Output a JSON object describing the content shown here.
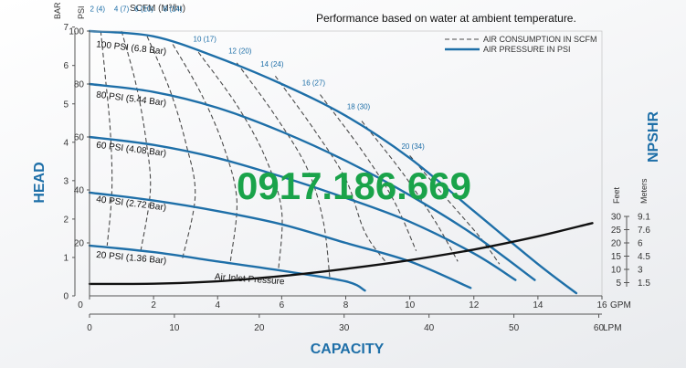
{
  "chart_data": {
    "type": "line",
    "note": "Performance based on water at ambient temperature.",
    "xlabel": "CAPACITY",
    "ylabel": "HEAD",
    "y2label": "NPSHR",
    "x_gpm": {
      "unit": "GPM",
      "range": [
        0,
        16
      ],
      "ticks": [
        "0",
        "2",
        "4",
        "6",
        "8",
        "10",
        "12",
        "14",
        "16"
      ]
    },
    "x_lpm": {
      "unit": "LPM",
      "range": [
        0,
        60
      ],
      "ticks": [
        "0",
        "10",
        "20",
        "30",
        "40",
        "50",
        "60"
      ]
    },
    "y_psi": {
      "unit": "PSI",
      "range": [
        0,
        100
      ],
      "ticks": [
        "20",
        "40",
        "60",
        "80",
        "100"
      ]
    },
    "y_bar": {
      "unit": "BAR",
      "ticks": [
        "0",
        "1",
        "2",
        "3",
        "4",
        "5",
        "6",
        "7"
      ]
    },
    "npshr_feet": {
      "unit": "Feet",
      "ticks": [
        "5",
        "10",
        "15",
        "20",
        "25",
        "30"
      ]
    },
    "npshr_meters": {
      "unit": "Meters",
      "ticks": [
        "1.5",
        "3",
        "4.5",
        "6",
        "7.6",
        "9.1"
      ]
    },
    "scfm_header": "SCFM (M³/hr)",
    "legend": {
      "position": "top-right",
      "entries": [
        {
          "label": "AIR CONSUMPTION IN SCFM",
          "style": "dashed"
        },
        {
          "label": "AIR PRESSURE IN PSI",
          "style": "solid"
        }
      ]
    },
    "air_pressure_series": [
      {
        "name": "100 PSI (6.8 Bar)",
        "points": [
          [
            0,
            100
          ],
          [
            2,
            98
          ],
          [
            4,
            90
          ],
          [
            6,
            80
          ],
          [
            8,
            68
          ],
          [
            10,
            52
          ],
          [
            12,
            32
          ],
          [
            14,
            12
          ],
          [
            15.2,
            1
          ]
        ]
      },
      {
        "name": "80 PSI (5.44 Bar)",
        "points": [
          [
            0,
            80
          ],
          [
            2,
            77
          ],
          [
            4,
            71
          ],
          [
            6,
            62
          ],
          [
            8,
            51
          ],
          [
            10,
            38
          ],
          [
            12,
            23
          ],
          [
            13.9,
            6
          ]
        ]
      },
      {
        "name": "60 PSI (4.08 Bar)",
        "points": [
          [
            0,
            60
          ],
          [
            2,
            57
          ],
          [
            4,
            52
          ],
          [
            6,
            45
          ],
          [
            8,
            37
          ],
          [
            10,
            28
          ],
          [
            12,
            16
          ],
          [
            13.3,
            6
          ]
        ]
      },
      {
        "name": "40 PSI (2.72 Bar)",
        "points": [
          [
            0,
            39
          ],
          [
            2,
            36
          ],
          [
            4,
            32
          ],
          [
            6,
            27
          ],
          [
            8,
            20
          ],
          [
            10,
            13
          ],
          [
            11.9,
            3
          ]
        ]
      },
      {
        "name": "20 PSI (1.36 Bar)",
        "points": [
          [
            0,
            19
          ],
          [
            2,
            16.5
          ],
          [
            4,
            13
          ],
          [
            6,
            9.5
          ],
          [
            8,
            5.5
          ],
          [
            8.6,
            2
          ]
        ]
      }
    ],
    "scfm_labels": [
      "2 (4)",
      "4 (7)",
      "6 (10)",
      "8 (14)",
      "10 (17)",
      "12 (20)",
      "14 (24)",
      "16 (27)",
      "18 (30)",
      "20 (34)"
    ],
    "air_consumption_series": [
      {
        "name": "2 (4)",
        "points": [
          [
            0.35,
            100
          ],
          [
            0.5,
            82
          ],
          [
            0.65,
            62
          ],
          [
            0.7,
            40
          ],
          [
            0.55,
            19
          ]
        ]
      },
      {
        "name": "4 (7)",
        "points": [
          [
            1.0,
            100
          ],
          [
            1.45,
            80
          ],
          [
            1.75,
            60
          ],
          [
            1.9,
            40
          ],
          [
            1.6,
            17
          ]
        ]
      },
      {
        "name": "6 (10)",
        "points": [
          [
            1.8,
            98
          ],
          [
            2.5,
            78
          ],
          [
            3.0,
            58
          ],
          [
            3.3,
            38
          ],
          [
            2.9,
            14
          ]
        ]
      },
      {
        "name": "8 (14)",
        "points": [
          [
            2.6,
            95
          ],
          [
            3.5,
            76
          ],
          [
            4.2,
            56
          ],
          [
            4.6,
            36
          ],
          [
            4.4,
            13
          ]
        ]
      },
      {
        "name": "10 (17)",
        "points": [
          [
            3.4,
            92
          ],
          [
            4.6,
            72
          ],
          [
            5.5,
            52
          ],
          [
            6.0,
            32
          ],
          [
            5.9,
            10
          ]
        ]
      },
      {
        "name": "12 (20)",
        "points": [
          [
            4.6,
            88
          ],
          [
            5.8,
            68
          ],
          [
            6.8,
            48
          ],
          [
            7.3,
            28
          ],
          [
            7.5,
            7
          ]
        ]
      },
      {
        "name": "14 (24)",
        "points": [
          [
            5.8,
            83
          ],
          [
            7.0,
            63
          ],
          [
            8.0,
            44
          ],
          [
            8.6,
            24
          ],
          [
            9.3,
            12
          ]
        ]
      },
      {
        "name": "16 (27)",
        "points": [
          [
            7.2,
            76
          ],
          [
            8.5,
            55
          ],
          [
            9.5,
            36
          ],
          [
            10.2,
            17
          ]
        ]
      },
      {
        "name": "18 (30)",
        "points": [
          [
            8.5,
            66
          ],
          [
            9.8,
            46
          ],
          [
            10.8,
            28
          ],
          [
            11.5,
            13
          ]
        ]
      },
      {
        "name": "20 (34)",
        "points": [
          [
            10.0,
            53
          ],
          [
            11.2,
            36
          ],
          [
            12.2,
            22
          ],
          [
            12.8,
            12
          ]
        ]
      }
    ],
    "npshr_curve": {
      "label": "Air Inlet Pressure",
      "unit": "Feet",
      "points": [
        [
          0,
          4.5
        ],
        [
          2,
          4.6
        ],
        [
          4,
          5.5
        ],
        [
          6,
          7.5
        ],
        [
          8,
          10.2
        ],
        [
          10,
          13.5
        ],
        [
          12,
          17.5
        ],
        [
          14,
          22.5
        ],
        [
          15.7,
          27.5
        ]
      ]
    },
    "watermark": "0917.186.669",
    "colors": {
      "pressure": "#1e6fa8",
      "consumption": "#4a4a4a",
      "npshr": "#111111",
      "axis_title": "#1e6fa8",
      "watermark": "#1aa34a"
    }
  }
}
